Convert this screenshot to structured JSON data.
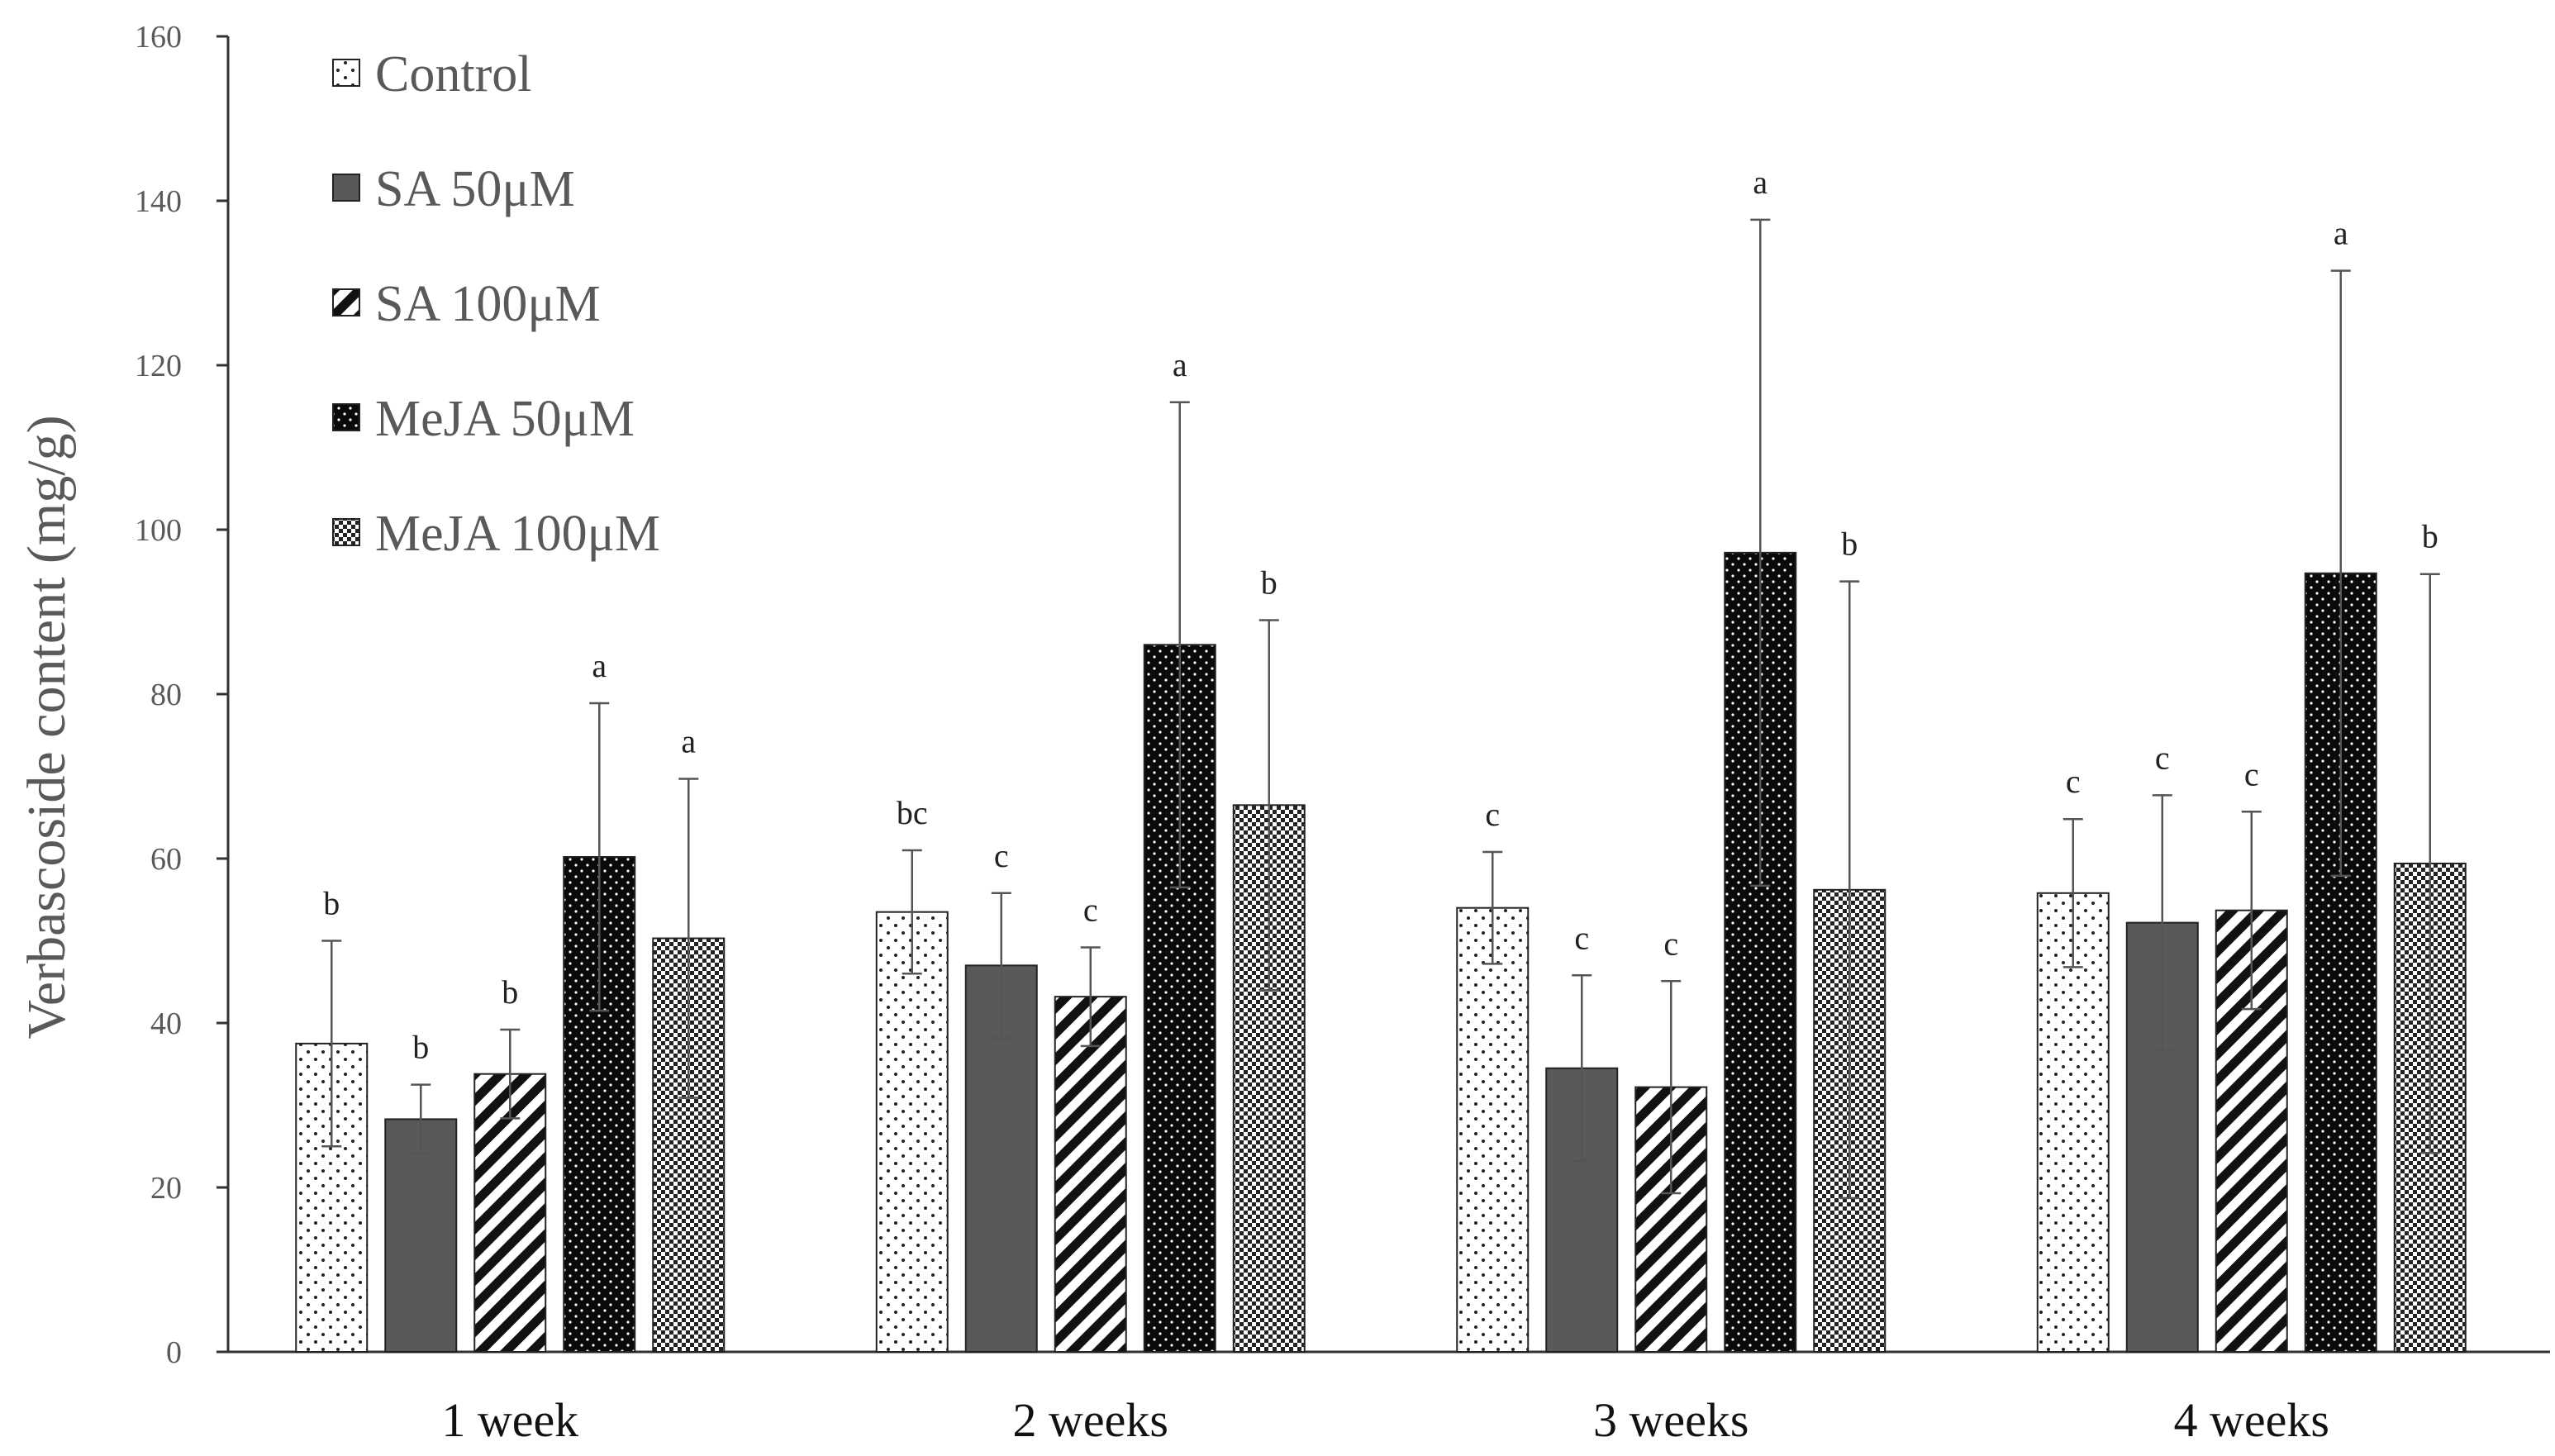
{
  "chart_data": {
    "type": "bar",
    "title": "",
    "xlabel": "",
    "ylabel": "Verbascoside content (mg/g)",
    "ylim": [
      0,
      160
    ],
    "yticks": [
      0,
      20,
      40,
      60,
      80,
      100,
      120,
      140,
      160
    ],
    "grid": false,
    "legend_position": "top-left",
    "categories": [
      "1 week",
      "2 weeks",
      "3 weeks",
      "4 weeks"
    ],
    "series": [
      {
        "name": "Control",
        "pattern": "sparse-dots",
        "values": [
          37.5,
          53.5,
          54,
          55.8
        ],
        "errors": [
          12.5,
          7.5,
          6.8,
          9.0
        ],
        "letters": [
          "b",
          "bc",
          "c",
          "c"
        ]
      },
      {
        "name": "SA 50μM",
        "pattern": "solid-gray",
        "values": [
          28.3,
          47,
          34.5,
          52.2
        ],
        "errors": [
          4.2,
          8.8,
          11.3,
          15.5
        ],
        "letters": [
          "b",
          "c",
          "c",
          "c"
        ]
      },
      {
        "name": "SA 100μM",
        "pattern": "diagonal-stripes",
        "values": [
          33.8,
          43.2,
          32.2,
          53.7
        ],
        "errors": [
          5.4,
          6.0,
          12.9,
          12.0
        ],
        "letters": [
          "b",
          "c",
          "c",
          "c"
        ]
      },
      {
        "name": "MeJA 50μM",
        "pattern": "black-with-white-dots",
        "values": [
          60.2,
          86,
          97.2,
          94.7
        ],
        "errors": [
          18.7,
          29.5,
          40.5,
          36.8
        ],
        "letters": [
          "a",
          "a",
          "a",
          "a"
        ]
      },
      {
        "name": "MeJA 100μM",
        "pattern": "checkerboard",
        "values": [
          50.3,
          66.5,
          56.2,
          59.4
        ],
        "errors": [
          19.4,
          22.5,
          37.5,
          35.2
        ],
        "letters": [
          "a",
          "b",
          "b",
          "b"
        ]
      }
    ]
  }
}
